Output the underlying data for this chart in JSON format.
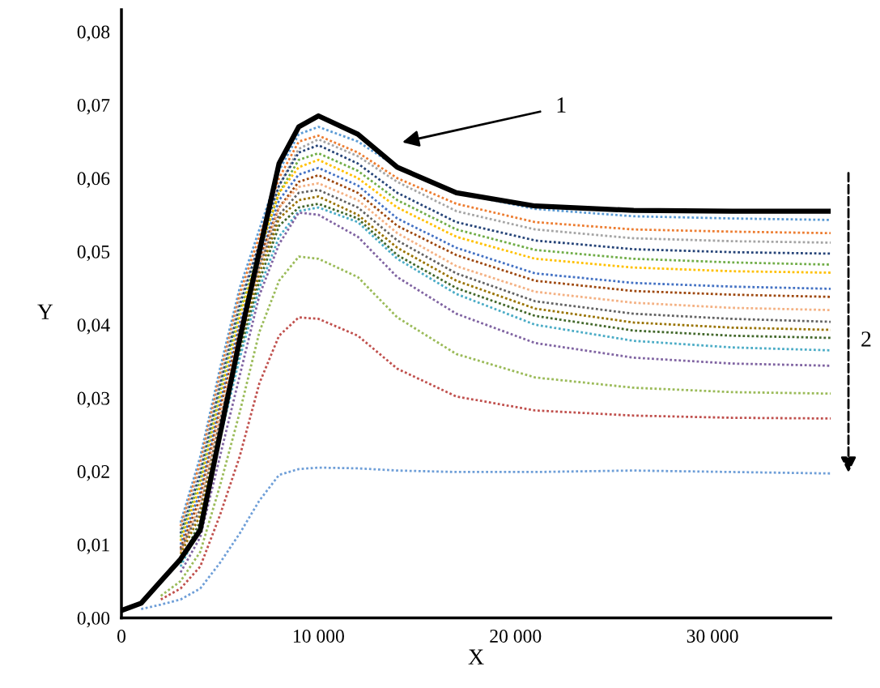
{
  "chart_data": {
    "type": "line",
    "xlabel": "X",
    "ylabel": "Y",
    "line_style": "dotted",
    "x": [
      0,
      1000,
      2000,
      3000,
      4000,
      5000,
      6000,
      7000,
      8000,
      9000,
      10000,
      12000,
      14000,
      17000,
      21000,
      26000,
      31000,
      36000
    ],
    "xlim": [
      0,
      36000
    ],
    "ylim": [
      0,
      0.083
    ],
    "xticks": [
      {
        "value": 0,
        "label": "0"
      },
      {
        "value": 10000,
        "label": "10 000"
      },
      {
        "value": 20000,
        "label": "20 000"
      },
      {
        "value": 30000,
        "label": "30 000"
      }
    ],
    "yticks": [
      {
        "value": 0,
        "label": "0,00"
      },
      {
        "value": 0.01,
        "label": "0,01"
      },
      {
        "value": 0.02,
        "label": "0,02"
      },
      {
        "value": 0.03,
        "label": "0,03"
      },
      {
        "value": 0.04,
        "label": "0,04"
      },
      {
        "value": 0.05,
        "label": "0,05"
      },
      {
        "value": 0.06,
        "label": "0,06"
      },
      {
        "value": 0.07,
        "label": "0,07"
      },
      {
        "value": 0.08,
        "label": "0,08"
      }
    ],
    "series": [
      {
        "color": "#5b9bd5",
        "values": [
          null,
          null,
          null,
          0.013,
          0.022,
          0.034,
          0.045,
          0.053,
          0.061,
          0.066,
          0.067,
          0.065,
          0.0615,
          0.058,
          0.0558,
          0.0548,
          0.0545,
          0.0543
        ]
      },
      {
        "color": "#ed7d31",
        "values": [
          null,
          null,
          null,
          0.0125,
          0.0212,
          0.0332,
          0.0442,
          0.052,
          0.06,
          0.065,
          0.0658,
          0.0635,
          0.06,
          0.0565,
          0.054,
          0.053,
          0.0527,
          0.0525
        ]
      },
      {
        "color": "#a5a5a5",
        "values": [
          null,
          null,
          null,
          0.012,
          0.0204,
          0.0324,
          0.0434,
          0.051,
          0.059,
          0.064,
          0.0653,
          0.063,
          0.0595,
          0.0555,
          0.053,
          0.0518,
          0.0514,
          0.0512
        ]
      },
      {
        "color": "#264478",
        "values": [
          null,
          null,
          null,
          0.0115,
          0.0196,
          0.0316,
          0.0426,
          0.051,
          0.059,
          0.0635,
          0.0645,
          0.062,
          0.058,
          0.054,
          0.0515,
          0.0503,
          0.0499,
          0.0497
        ]
      },
      {
        "color": "#70ad47",
        "values": [
          null,
          null,
          null,
          0.011,
          0.0188,
          0.0308,
          0.0418,
          0.05,
          0.058,
          0.0625,
          0.0634,
          0.061,
          0.057,
          0.053,
          0.0502,
          0.049,
          0.0485,
          0.0482
        ]
      },
      {
        "color": "#ffc000",
        "values": [
          null,
          null,
          null,
          0.0105,
          0.018,
          0.03,
          0.041,
          0.05,
          0.058,
          0.0615,
          0.0625,
          0.06,
          0.056,
          0.052,
          0.049,
          0.0478,
          0.0473,
          0.0471
        ]
      },
      {
        "color": "#4472c4",
        "values": [
          null,
          null,
          null,
          0.01,
          0.0172,
          0.0292,
          0.0402,
          0.049,
          0.057,
          0.0605,
          0.0614,
          0.059,
          0.0545,
          0.0505,
          0.047,
          0.0457,
          0.0452,
          0.0449
        ]
      },
      {
        "color": "#9e480e",
        "values": [
          null,
          null,
          null,
          0.0095,
          0.0164,
          0.0284,
          0.0394,
          0.049,
          0.056,
          0.0595,
          0.0604,
          0.058,
          0.0535,
          0.0495,
          0.046,
          0.0446,
          0.0441,
          0.0438
        ]
      },
      {
        "color": "#f4b183",
        "values": [
          null,
          null,
          null,
          0.009,
          0.0156,
          0.0276,
          0.0386,
          0.048,
          0.056,
          0.0588,
          0.0593,
          0.057,
          0.0525,
          0.048,
          0.0445,
          0.043,
          0.0423,
          0.042
        ]
      },
      {
        "color": "#636363",
        "values": [
          null,
          null,
          null,
          0.0093,
          0.0148,
          0.0268,
          0.0378,
          0.048,
          0.055,
          0.058,
          0.0584,
          0.056,
          0.0515,
          0.047,
          0.0432,
          0.0415,
          0.0408,
          0.0404
        ]
      },
      {
        "color": "#997300",
        "values": [
          null,
          null,
          null,
          0.0087,
          0.014,
          0.026,
          0.037,
          0.047,
          0.0545,
          0.057,
          0.0575,
          0.055,
          0.0505,
          0.046,
          0.0422,
          0.0403,
          0.0396,
          0.0393
        ]
      },
      {
        "color": "#43682b",
        "values": [
          null,
          null,
          null,
          0.0075,
          0.0132,
          0.0252,
          0.0362,
          0.046,
          0.0535,
          0.056,
          0.0565,
          0.0545,
          0.0495,
          0.045,
          0.0412,
          0.0392,
          0.0385,
          0.0382
        ]
      },
      {
        "color": "#4bacc6",
        "values": [
          null,
          null,
          null,
          0.007,
          0.0124,
          0.0244,
          0.0354,
          0.045,
          0.052,
          0.0555,
          0.056,
          0.054,
          0.049,
          0.0442,
          0.04,
          0.0378,
          0.0369,
          0.0365
        ]
      },
      {
        "color": "#8064a2",
        "values": [
          null,
          null,
          null,
          0.0062,
          0.011,
          0.022,
          0.033,
          0.044,
          0.051,
          0.0553,
          0.055,
          0.052,
          0.0465,
          0.0415,
          0.0375,
          0.0355,
          0.0347,
          0.0344
        ]
      },
      {
        "color": "#9bbb59",
        "values": [
          null,
          null,
          0.003,
          0.005,
          0.009,
          0.018,
          0.028,
          0.039,
          0.046,
          0.0493,
          0.049,
          0.0465,
          0.041,
          0.036,
          0.0328,
          0.0314,
          0.0308,
          0.0306
        ]
      },
      {
        "color": "#c0504d",
        "values": [
          null,
          null,
          0.0025,
          0.004,
          0.007,
          0.014,
          0.022,
          0.032,
          0.0385,
          0.041,
          0.0408,
          0.0385,
          0.034,
          0.0302,
          0.0283,
          0.0276,
          0.0273,
          0.0272
        ]
      },
      {
        "color": "#6f9fd8",
        "values": [
          null,
          0.0012,
          0.0018,
          0.0025,
          0.004,
          0.0075,
          0.0115,
          0.016,
          0.0195,
          0.0203,
          0.0205,
          0.0204,
          0.0201,
          0.0199,
          0.0199,
          0.0201,
          0.0199,
          0.0197
        ]
      },
      {
        "color": "#000000",
        "line_style": "solid",
        "values": [
          0.001,
          0.002,
          0.005,
          0.008,
          0.012,
          0.025,
          0.038,
          0.05,
          0.062,
          0.067,
          0.0685,
          0.066,
          0.0615,
          0.058,
          0.0562,
          0.0556,
          0.0555,
          0.0555
        ]
      }
    ],
    "annotations": [
      "1",
      "2"
    ]
  }
}
